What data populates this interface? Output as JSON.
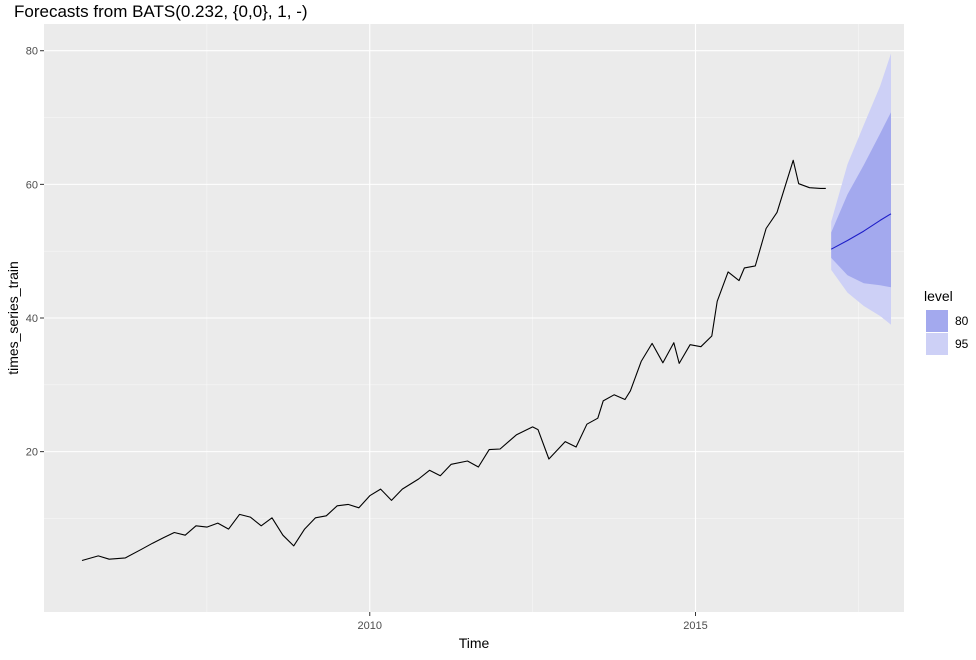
{
  "chart_data": {
    "type": "line",
    "title": "Forecasts from BATS(0.232, {0,0}, 1, -)",
    "xlabel": "Time",
    "ylabel": "times_series_train",
    "xlim": [
      2005.0,
      2018.2
    ],
    "ylim": [
      -4,
      84
    ],
    "x_ticks": [
      2010,
      2015
    ],
    "y_ticks": [
      20,
      40,
      60,
      80
    ],
    "grid": true,
    "legend": {
      "title": "level",
      "placement": "right",
      "entries": [
        {
          "label": "80",
          "color": "#a3a9ee"
        },
        {
          "label": "95",
          "color": "#cdd0f6"
        }
      ]
    },
    "series": [
      {
        "color": "#000000",
        "x": [
          2005.583,
          2005.833,
          2006.0,
          2006.25,
          2006.5,
          2006.667,
          2006.833,
          2007.0,
          2007.167,
          2007.333,
          2007.5,
          2007.667,
          2007.833,
          2008.0,
          2008.167,
          2008.333,
          2008.5,
          2008.667,
          2008.833,
          2009.0,
          2009.167,
          2009.333,
          2009.5,
          2009.667,
          2009.833,
          2010.0,
          2010.167,
          2010.333,
          2010.5,
          2010.75,
          2010.917,
          2011.083,
          2011.25,
          2011.5,
          2011.667,
          2011.833,
          2012.0,
          2012.25,
          2012.5,
          2012.583,
          2012.75,
          2013.0,
          2013.167,
          2013.333,
          2013.5,
          2013.583,
          2013.75,
          2013.917,
          2014.0,
          2014.167,
          2014.333,
          2014.5,
          2014.667,
          2014.75,
          2014.917,
          2015.083,
          2015.25,
          2015.333,
          2015.5,
          2015.667,
          2015.75,
          2015.917,
          2016.083,
          2016.25,
          2016.5,
          2016.583,
          2016.75,
          2016.917,
          2017.0
        ],
        "y": [
          3.7,
          4.4,
          3.9,
          4.1,
          5.4,
          6.3,
          7.1,
          7.9,
          7.5,
          8.9,
          8.7,
          9.3,
          8.4,
          10.6,
          10.2,
          8.9,
          10.1,
          7.5,
          5.9,
          8.4,
          10.1,
          10.4,
          11.9,
          12.1,
          11.6,
          13.4,
          14.4,
          12.7,
          14.4,
          15.9,
          17.2,
          16.4,
          18.1,
          18.6,
          17.7,
          20.3,
          20.4,
          22.5,
          23.7,
          23.3,
          18.9,
          21.5,
          20.7,
          24.1,
          25.0,
          27.6,
          28.5,
          27.8,
          29.1,
          33.5,
          36.2,
          33.3,
          36.3,
          33.2,
          36.0,
          35.7,
          37.3,
          42.5,
          46.9,
          45.6,
          47.5,
          47.8,
          53.4,
          55.8,
          63.6,
          60.1,
          59.5,
          59.4,
          59.4
        ]
      },
      {
        "name": "forecast",
        "color": "#1e1ec8",
        "x": [
          2017.083,
          2017.333,
          2017.583,
          2017.833,
          2018.0
        ],
        "y": [
          50.3,
          51.6,
          53.0,
          54.6,
          55.6
        ]
      }
    ],
    "bands": [
      {
        "level": "95",
        "color": "#cdd0f6",
        "x": [
          2017.083,
          2017.333,
          2017.583,
          2017.833,
          2018.0
        ],
        "lower": [
          47.2,
          43.8,
          41.8,
          40.3,
          39.0
        ],
        "upper": [
          54.4,
          63.0,
          68.9,
          74.7,
          79.6
        ]
      },
      {
        "level": "80",
        "color": "#a3a9ee",
        "x": [
          2017.083,
          2017.333,
          2017.583,
          2017.833,
          2018.0
        ],
        "lower": [
          49.0,
          46.4,
          45.2,
          44.9,
          44.6
        ],
        "upper": [
          52.8,
          58.5,
          62.9,
          67.6,
          70.8
        ]
      }
    ]
  }
}
